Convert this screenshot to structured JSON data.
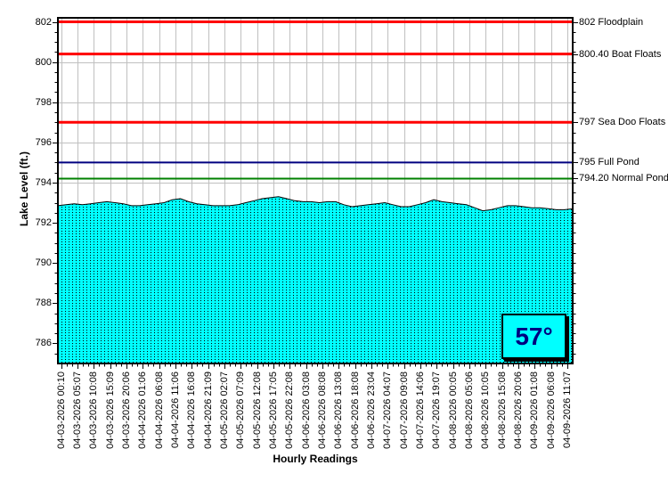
{
  "chart_data": {
    "type": "area",
    "title": "",
    "ylabel": "Lake Level (ft.)",
    "xlabel": "Hourly Readings",
    "ylim": [
      785,
      802.2
    ],
    "yticks": [
      786,
      788,
      790,
      792,
      794,
      796,
      798,
      800,
      802
    ],
    "y_minor_step": 0.5,
    "grid": true,
    "grid_color": "#C0C0C0",
    "x_tick_labels": [
      "04-03-2026 00:10",
      "04-03-2026 05:07",
      "04-03-2026 10:08",
      "04-03-2026 15:09",
      "04-03-2026 20:06",
      "04-04-2026 01:06",
      "04-04-2026 06:08",
      "04-04-2026 11:06",
      "04-04-2026 16:08",
      "04-04-2026 21:09",
      "04-05-2026 02:07",
      "04-05-2026 07:09",
      "04-05-2026 12:08",
      "04-05-2026 17:05",
      "04-05-2026 22:08",
      "04-06-2026 03:08",
      "04-06-2026 08:08",
      "04-06-2026 13:08",
      "04-06-2026 18:08",
      "04-06-2026 23:04",
      "04-07-2026 04:07",
      "04-07-2026 09:08",
      "04-07-2026 14:06",
      "04-07-2026 19:07",
      "04-08-2026 00:05",
      "04-08-2026 05:06",
      "04-08-2026 10:05",
      "04-08-2026 15:08",
      "04-08-2026 20:06",
      "04-09-2026 01:08",
      "04-09-2026 06:08",
      "04-09-2026 11:07"
    ],
    "series": [
      {
        "name": "Lake Level",
        "color": "#00FFFF",
        "dot_color": "#000000",
        "outline": "#000000",
        "values": [
          792.85,
          792.9,
          792.95,
          792.9,
          792.95,
          793.0,
          793.05,
          793.0,
          792.95,
          792.85,
          792.85,
          792.9,
          792.95,
          793.0,
          793.15,
          793.2,
          793.05,
          792.95,
          792.9,
          792.85,
          792.85,
          792.85,
          792.9,
          793.0,
          793.1,
          793.2,
          793.25,
          793.3,
          793.2,
          793.1,
          793.05,
          793.05,
          793.0,
          793.05,
          793.05,
          792.9,
          792.8,
          792.85,
          792.9,
          792.95,
          793.0,
          792.9,
          792.8,
          792.8,
          792.9,
          793.0,
          793.15,
          793.05,
          793.0,
          792.95,
          792.9,
          792.75,
          792.6,
          792.65,
          792.75,
          792.85,
          792.85,
          792.8,
          792.75,
          792.75,
          792.7,
          792.65,
          792.65,
          792.7
        ]
      }
    ],
    "reference_lines": [
      {
        "value": 802,
        "label": "802 Floodplain",
        "color": "#FF0000",
        "width": 3
      },
      {
        "value": 800.4,
        "label": "800.40 Boat Floats",
        "color": "#FF0000",
        "width": 3
      },
      {
        "value": 797,
        "label": "797 Sea Doo Floats",
        "color": "#FF0000",
        "width": 3
      },
      {
        "value": 795,
        "label": "795 Full Pond",
        "color": "#000080",
        "width": 2
      },
      {
        "value": 794.2,
        "label": "794.20 Normal Pond",
        "color": "#008000",
        "width": 2
      }
    ],
    "overlay_badge": {
      "text": "57°",
      "bg": "#00FFFF",
      "fg": "#000080",
      "border": "#000000"
    }
  }
}
